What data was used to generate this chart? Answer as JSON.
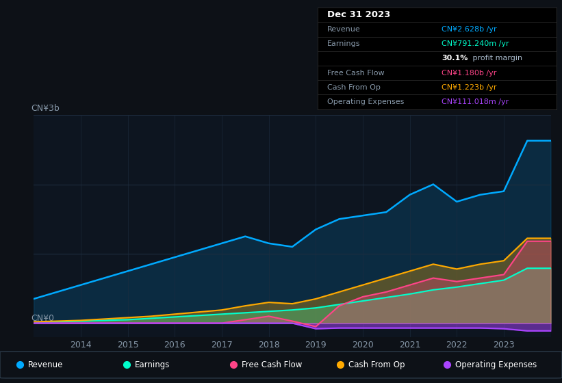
{
  "bg_color": "#0d1117",
  "chart_bg": "#0d1520",
  "years": [
    2013,
    2013.5,
    2014,
    2014.5,
    2015,
    2015.5,
    2016,
    2016.5,
    2017,
    2017.5,
    2018,
    2018.5,
    2019,
    2019.5,
    2020,
    2020.5,
    2021,
    2021.5,
    2022,
    2022.5,
    2023,
    2023.5,
    2024
  ],
  "revenue": [
    0.35,
    0.45,
    0.55,
    0.65,
    0.75,
    0.85,
    0.95,
    1.05,
    1.15,
    1.25,
    1.15,
    1.1,
    1.35,
    1.5,
    1.55,
    1.6,
    1.85,
    2.0,
    1.75,
    1.85,
    1.9,
    2.628,
    2.628
  ],
  "earnings": [
    0.01,
    0.02,
    0.03,
    0.04,
    0.05,
    0.07,
    0.09,
    0.11,
    0.13,
    0.15,
    0.17,
    0.19,
    0.22,
    0.27,
    0.32,
    0.37,
    0.42,
    0.48,
    0.52,
    0.57,
    0.62,
    0.79124,
    0.79124
  ],
  "free_cash_flow": [
    0.0,
    0.0,
    0.0,
    0.0,
    0.0,
    0.0,
    0.0,
    0.0,
    0.0,
    0.05,
    0.1,
    0.03,
    -0.05,
    0.25,
    0.38,
    0.45,
    0.55,
    0.65,
    0.6,
    0.65,
    0.7,
    1.18,
    1.18
  ],
  "cash_from_op": [
    0.02,
    0.03,
    0.04,
    0.06,
    0.08,
    0.1,
    0.13,
    0.16,
    0.19,
    0.25,
    0.3,
    0.28,
    0.35,
    0.45,
    0.55,
    0.65,
    0.75,
    0.85,
    0.78,
    0.85,
    0.9,
    1.223,
    1.223
  ],
  "op_expenses": [
    0.0,
    0.0,
    0.0,
    0.0,
    0.0,
    0.0,
    0.0,
    0.0,
    0.0,
    0.0,
    0.0,
    0.0,
    -0.08,
    -0.07,
    -0.07,
    -0.07,
    -0.07,
    -0.07,
    -0.07,
    -0.07,
    -0.08,
    -0.111018,
    -0.111018
  ],
  "revenue_color": "#00aaff",
  "earnings_color": "#00ffcc",
  "fcf_color": "#ff4488",
  "cashop_color": "#ffaa00",
  "opex_color": "#aa44ff",
  "grid_color": "#1e2d40",
  "text_color": "#8899aa",
  "ylabel_text": "CN¥3b",
  "y0_text": "CN¥0",
  "x_ticks": [
    2014,
    2015,
    2016,
    2017,
    2018,
    2019,
    2020,
    2021,
    2022,
    2023
  ],
  "ylim": [
    -0.2,
    3.0
  ],
  "info_box": {
    "date": "Dec 31 2023",
    "rows": [
      {
        "label": "Revenue",
        "value": "CN¥2.628b /yr",
        "value_color": "#00aaff"
      },
      {
        "label": "Earnings",
        "value": "CN¥791.240m /yr",
        "value_color": "#00ffcc"
      },
      {
        "label": "",
        "value": "30.1% profit margin",
        "value_color": "#ffffff",
        "bold_part": "30.1%"
      },
      {
        "label": "Free Cash Flow",
        "value": "CN¥1.180b /yr",
        "value_color": "#ff4488"
      },
      {
        "label": "Cash From Op",
        "value": "CN¥1.223b /yr",
        "value_color": "#ffaa00"
      },
      {
        "label": "Operating Expenses",
        "value": "CN¥111.018m /yr",
        "value_color": "#aa44ff"
      }
    ]
  },
  "legend": [
    {
      "label": "Revenue",
      "color": "#00aaff"
    },
    {
      "label": "Earnings",
      "color": "#00ffcc"
    },
    {
      "label": "Free Cash Flow",
      "color": "#ff4488"
    },
    {
      "label": "Cash From Op",
      "color": "#ffaa00"
    },
    {
      "label": "Operating Expenses",
      "color": "#aa44ff"
    }
  ]
}
